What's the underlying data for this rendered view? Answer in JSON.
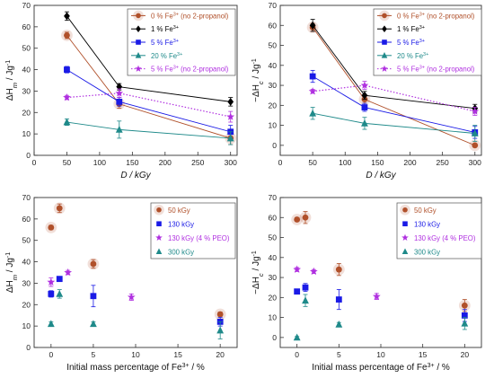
{
  "chart_data": [
    {
      "type": "scatter",
      "panel": "top-left",
      "xlabel": "D / kGy",
      "ylabel": "ΔH_m / Jg⁻¹",
      "xlim": [
        0,
        310
      ],
      "ylim": [
        0,
        70
      ],
      "xticks": [
        0,
        50,
        100,
        150,
        200,
        250,
        300
      ],
      "yticks": [
        0,
        10,
        20,
        30,
        40,
        50,
        60,
        70
      ],
      "grid": false,
      "legend_position": "top-right",
      "series": [
        {
          "name": "0 % Fe³⁺ (no 2-propanol)",
          "marker": "circle",
          "color": "#b0502a",
          "line": "solid",
          "x": [
            50,
            130,
            300
          ],
          "y": [
            56,
            24,
            8
          ],
          "err": [
            1.5,
            2,
            3
          ]
        },
        {
          "name": "1 % Fe³⁺",
          "marker": "diamond",
          "color": "#000000",
          "line": "solid",
          "x": [
            50,
            130,
            300
          ],
          "y": [
            65,
            32,
            25
          ],
          "err": [
            2,
            1.5,
            2
          ]
        },
        {
          "name": "5 % Fe³⁺",
          "marker": "square",
          "color": "#1a1ae6",
          "line": "solid",
          "x": [
            50,
            130,
            300
          ],
          "y": [
            40,
            25,
            11
          ],
          "err": [
            1.5,
            2,
            3
          ]
        },
        {
          "name": "20 % Fe³⁺",
          "marker": "triangle",
          "color": "#1f8a8a",
          "line": "solid",
          "x": [
            50,
            130,
            300
          ],
          "y": [
            15.5,
            12,
            8
          ],
          "err": [
            1.5,
            4,
            3
          ]
        },
        {
          "name": "5 % Fe³⁺ (no 2-propanol)",
          "marker": "star",
          "color": "#b030e0",
          "line": "dotted",
          "x": [
            50,
            130,
            300
          ],
          "y": [
            27,
            29,
            18
          ],
          "err": [
            1,
            2,
            2.5
          ]
        }
      ]
    },
    {
      "type": "scatter",
      "panel": "top-right",
      "xlabel": "D / kGy",
      "ylabel": "−ΔH_c / Jg⁻¹",
      "xlim": [
        0,
        310
      ],
      "ylim": [
        -5,
        70
      ],
      "xticks": [
        0,
        50,
        100,
        150,
        200,
        250,
        300
      ],
      "yticks": [
        0,
        10,
        20,
        30,
        40,
        50,
        60,
        70
      ],
      "grid": false,
      "legend_position": "top-right",
      "series": [
        {
          "name": "0 % Fe³⁺ (no 2-propanol)",
          "marker": "circle",
          "color": "#b0502a",
          "line": "solid",
          "x": [
            50,
            130,
            300
          ],
          "y": [
            59,
            23,
            0
          ],
          "err": [
            2,
            2,
            0.5
          ]
        },
        {
          "name": "1 % Fe³⁺",
          "marker": "diamond",
          "color": "#000000",
          "line": "solid",
          "x": [
            50,
            130,
            300
          ],
          "y": [
            60,
            25,
            18.5
          ],
          "err": [
            3,
            2,
            2
          ]
        },
        {
          "name": "5 % Fe³⁺",
          "marker": "square",
          "color": "#1a1ae6",
          "line": "solid",
          "x": [
            50,
            130,
            300
          ],
          "y": [
            34.5,
            19,
            6.5
          ],
          "err": [
            3,
            2,
            3
          ]
        },
        {
          "name": "20 % Fe³⁺",
          "marker": "triangle",
          "color": "#1f8a8a",
          "line": "solid",
          "x": [
            50,
            130,
            300
          ],
          "y": [
            16,
            11,
            6
          ],
          "err": [
            3,
            3,
            4
          ]
        },
        {
          "name": "5 % Fe³⁺ (no 2-propanol)",
          "marker": "star",
          "color": "#b030e0",
          "line": "dotted",
          "x": [
            50,
            130,
            300
          ],
          "y": [
            27,
            30,
            17
          ],
          "err": [
            1,
            2,
            2
          ]
        }
      ]
    },
    {
      "type": "scatter",
      "panel": "bottom-left",
      "xlabel": "Initial mass percentage of Fe³⁺ / %",
      "ylabel": "ΔH_m / Jg⁻¹",
      "xlim": [
        -2,
        22
      ],
      "ylim": [
        0,
        70
      ],
      "xticks": [
        0,
        5,
        10,
        15,
        20
      ],
      "yticks": [
        0,
        10,
        20,
        30,
        40,
        50,
        60,
        70
      ],
      "grid": false,
      "legend_position": "top-right",
      "series": [
        {
          "name": "50 kGy",
          "marker": "circle",
          "color": "#b0502a",
          "x": [
            0,
            1,
            5,
            20
          ],
          "y": [
            56,
            65,
            39,
            15.5
          ],
          "err": [
            1,
            2,
            2,
            1
          ]
        },
        {
          "name": "130 kGy",
          "marker": "square",
          "color": "#1a1ae6",
          "x": [
            0,
            1,
            5,
            20
          ],
          "y": [
            25,
            32,
            24,
            12
          ],
          "err": [
            1.5,
            1,
            5,
            2
          ]
        },
        {
          "name": "130 kGy (4 % PEO)",
          "marker": "star",
          "color": "#b030e0",
          "x": [
            0,
            2,
            9.5
          ],
          "y": [
            30.5,
            35,
            23.5
          ],
          "err": [
            2,
            1,
            1.5
          ]
        },
        {
          "name": "300 kGy",
          "marker": "triangle",
          "color": "#1f8a8a",
          "x": [
            0,
            1,
            5,
            20
          ],
          "y": [
            11,
            25,
            11,
            8
          ],
          "err": [
            1,
            2,
            1,
            4
          ]
        }
      ]
    },
    {
      "type": "scatter",
      "panel": "bottom-right",
      "xlabel": "Initial mass percentage of Fe³⁺ / %",
      "ylabel": "−ΔH_c / Jg⁻¹",
      "xlim": [
        -2,
        22
      ],
      "ylim": [
        -5,
        70
      ],
      "xticks": [
        0,
        5,
        10,
        15,
        20
      ],
      "yticks": [
        0,
        10,
        20,
        30,
        40,
        50,
        60,
        70
      ],
      "grid": false,
      "legend_position": "top-right",
      "series": [
        {
          "name": "50 kGy",
          "marker": "circle",
          "color": "#b0502a",
          "x": [
            0,
            1,
            5,
            20
          ],
          "y": [
            59,
            60,
            34,
            16
          ],
          "err": [
            1,
            3,
            3,
            3
          ]
        },
        {
          "name": "130 kGy",
          "marker": "square",
          "color": "#1a1ae6",
          "x": [
            0,
            1,
            5,
            20
          ],
          "y": [
            23,
            25,
            19,
            11
          ],
          "err": [
            1,
            2,
            5,
            3
          ]
        },
        {
          "name": "130 kGy (4 % PEO)",
          "marker": "star",
          "color": "#b030e0",
          "x": [
            0,
            2,
            9.5
          ],
          "y": [
            34,
            33,
            20.5
          ],
          "err": [
            1,
            1,
            1.5
          ]
        },
        {
          "name": "300 kGy",
          "marker": "triangle",
          "color": "#1f8a8a",
          "x": [
            0,
            1,
            5,
            20
          ],
          "y": [
            0,
            18.5,
            6.5,
            7
          ],
          "err": [
            0.5,
            3,
            1,
            3
          ]
        }
      ]
    }
  ]
}
